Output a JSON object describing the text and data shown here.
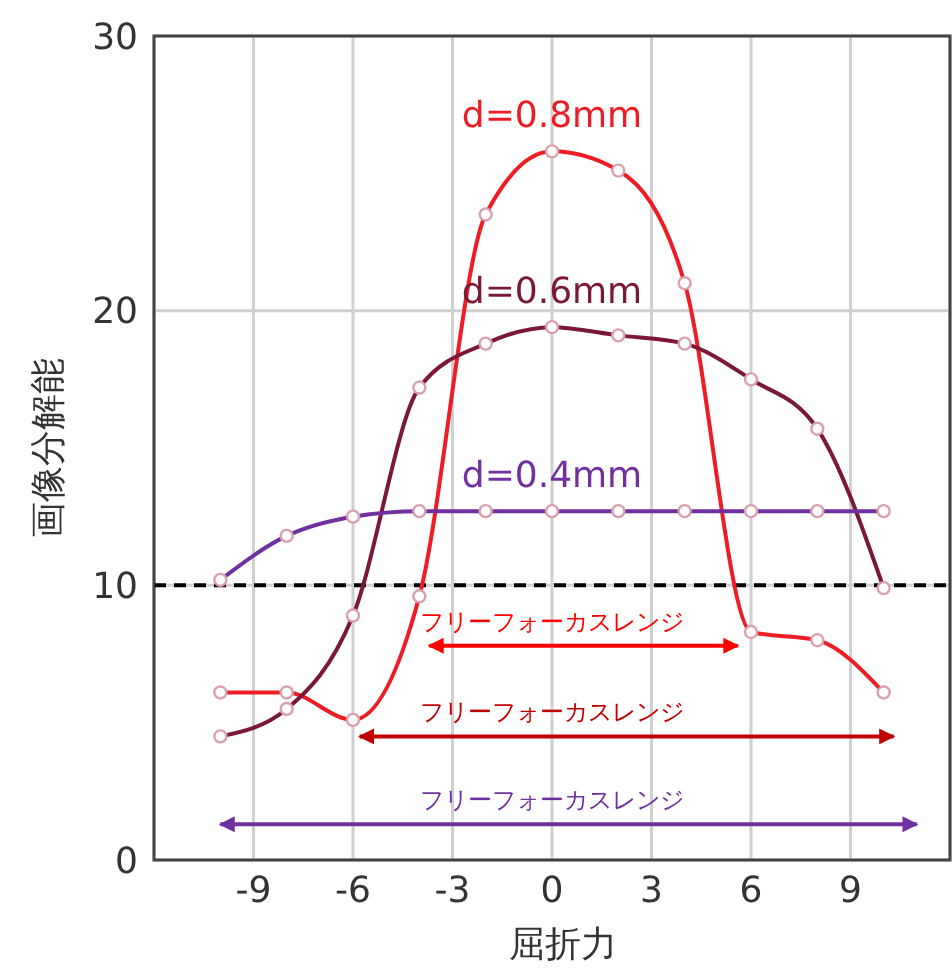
{
  "chart_data": {
    "type": "line",
    "xlabel": "屈折力",
    "ylabel": "画像分解能",
    "xlim": [
      -12,
      12
    ],
    "xticks": [
      -9,
      -6,
      -3,
      0,
      3,
      6,
      9
    ],
    "ylim": [
      0,
      30
    ],
    "yticks": [
      0,
      10,
      20,
      30
    ],
    "grid": true,
    "marker": "circle",
    "x": [
      -10,
      -8,
      -6,
      -4,
      -2,
      0,
      2,
      4,
      6,
      8,
      10
    ],
    "series": [
      {
        "color": "#ee1c25",
        "values": [
          6.1,
          6.1,
          5.1,
          9.6,
          23.5,
          25.8,
          25.1,
          21.0,
          8.3,
          8.0,
          6.1
        ]
      },
      {
        "color": "#7b1838",
        "values": [
          4.5,
          5.5,
          8.9,
          17.2,
          18.8,
          19.4,
          19.1,
          18.8,
          17.5,
          15.7,
          9.9
        ]
      },
      {
        "color": "#7030a0",
        "values": [
          10.2,
          11.8,
          12.5,
          12.7,
          12.7,
          12.7,
          12.7,
          12.7,
          12.7,
          12.7,
          12.7
        ]
      },
      {
        "type": "line",
        "marker": "none",
        "color": "#ff0000",
        "x": [
          -3.7,
          5.6
        ],
        "values": [
          7.8,
          7.8
        ]
      },
      {
        "type": "line",
        "marker": "none",
        "color": "#c00000",
        "x": [
          -5.8,
          10.3
        ],
        "values": [
          4.5,
          4.5
        ]
      },
      {
        "type": "line",
        "marker": "none",
        "color": "#7030a0",
        "x": [
          -10,
          11
        ],
        "values": [
          1.3,
          1.3
        ]
      }
    ],
    "ref_lines": [
      {
        "axis": "y",
        "value": 10,
        "color": "#000000",
        "line_style": "dashed"
      }
    ],
    "annotations": [
      "d=0.8mm",
      "d=0.6mm",
      "d=0.4mm",
      "フリーフォーカスレンジ",
      "フリーフォーカスレンジ",
      "フリーフォーカスレンジ"
    ]
  }
}
